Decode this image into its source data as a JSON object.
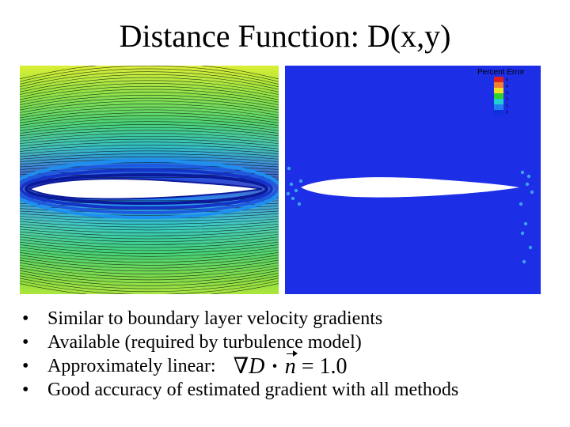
{
  "slide": {
    "title": "Distance Function: D(x,y)"
  },
  "left_plot": {
    "colors": [
      "#1a3bd8",
      "#1e9af0",
      "#29c9c9",
      "#2ecc70",
      "#80e040",
      "#d4ee30"
    ]
  },
  "right_plot": {
    "legend_title": "Percent Error",
    "legend_levels": [
      "5",
      "4",
      "3",
      "2",
      "1",
      "0"
    ],
    "legend_colors": [
      "#e02020",
      "#f08030",
      "#f0e020",
      "#30d030",
      "#20d0d0",
      "#2080f0",
      "#1030e0"
    ],
    "background_color": "#1c2fe6"
  },
  "bullets": [
    {
      "text": "Similar to boundary layer velocity gradients"
    },
    {
      "text": "Available (required by turbulence model)"
    },
    {
      "text": "Approximately linear:",
      "equation": {
        "nabla": "∇",
        "D": "D",
        "dot": "·",
        "n": "n",
        "rhs": "= 1.0"
      }
    },
    {
      "text": "Good accuracy of estimated gradient with all methods"
    }
  ],
  "bullet_symbol": "•"
}
